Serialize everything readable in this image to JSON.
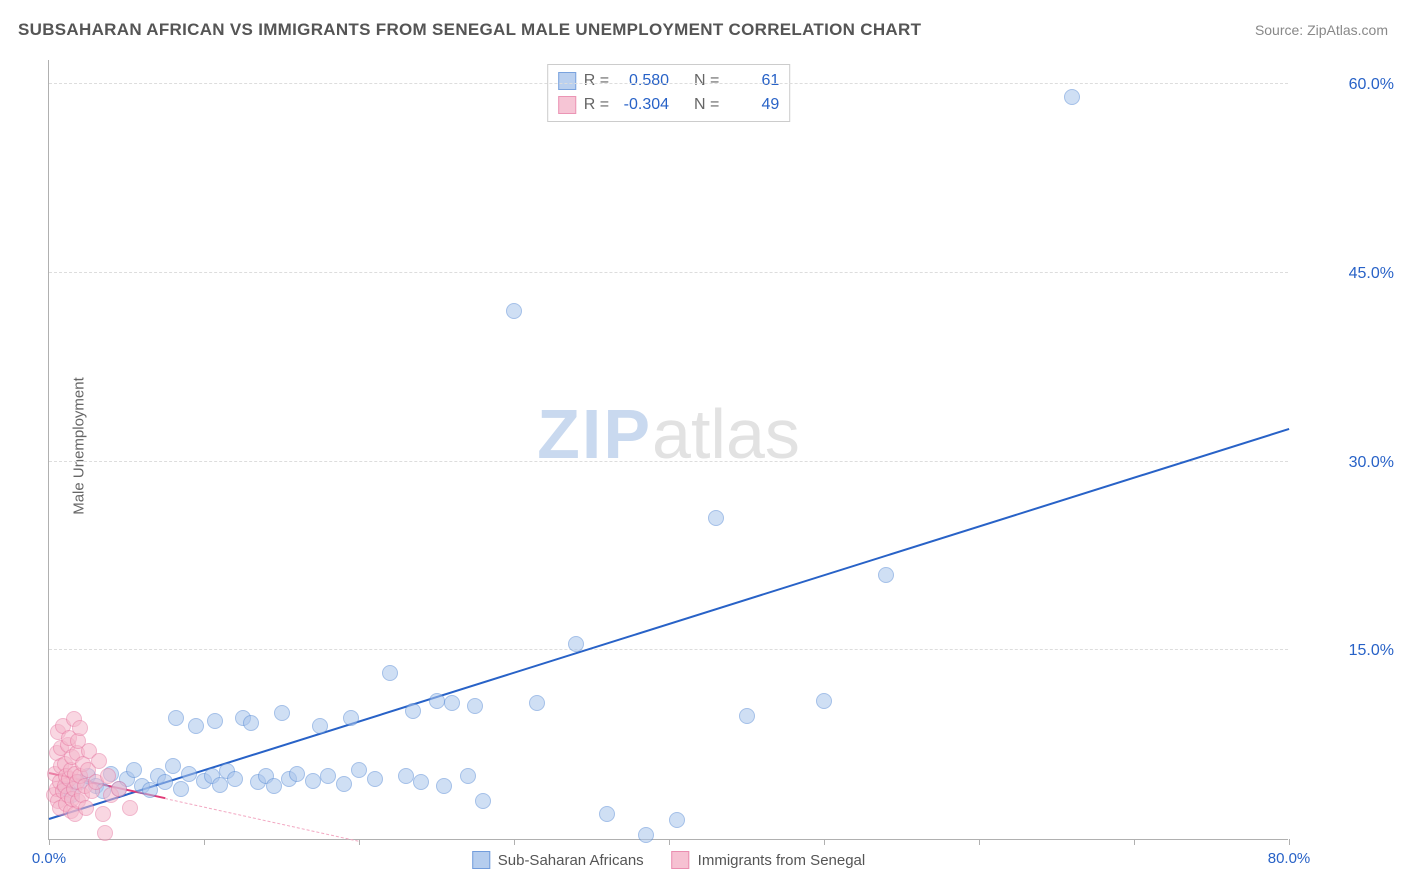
{
  "title": "SUBSAHARAN AFRICAN VS IMMIGRANTS FROM SENEGAL MALE UNEMPLOYMENT CORRELATION CHART",
  "source": "Source: ZipAtlas.com",
  "ylabel": "Male Unemployment",
  "watermark": {
    "part1": "ZIP",
    "part2": "atlas"
  },
  "chart": {
    "type": "scatter",
    "background_color": "#ffffff",
    "grid_color": "#dddddd",
    "axis_color": "#b0b0b0",
    "tick_label_color": "#2862c7",
    "tick_fontsize": 16,
    "xlim": [
      0,
      80
    ],
    "ylim": [
      0,
      62
    ],
    "x_ticks": [
      0,
      10,
      20,
      30,
      40,
      50,
      60,
      70,
      80
    ],
    "x_tick_labels": {
      "0": "0.0%",
      "80": "80.0%"
    },
    "y_ticks": [
      15,
      30,
      45,
      60
    ],
    "y_tick_labels": {
      "15": "15.0%",
      "30": "30.0%",
      "45": "45.0%",
      "60": "60.0%"
    },
    "point_radius": 8,
    "series": [
      {
        "name": "Sub-Saharan Africans",
        "fill": "#a9c5ec",
        "stroke": "#5a8dd6",
        "fill_opacity": 0.55,
        "r_value": "0.580",
        "n_value": "61",
        "trend": {
          "x1": 0,
          "y1": 1.5,
          "x2": 80,
          "y2": 32.5,
          "color": "#2862c7",
          "width": 2.2,
          "dash": false
        },
        "points": [
          [
            1,
            4.0
          ],
          [
            1.5,
            3.5
          ],
          [
            2,
            4.5
          ],
          [
            2.5,
            5.0
          ],
          [
            3,
            4.2
          ],
          [
            3.5,
            3.8
          ],
          [
            4,
            5.2
          ],
          [
            4.5,
            4.0
          ],
          [
            5,
            4.8
          ],
          [
            5.5,
            5.5
          ],
          [
            6,
            4.2
          ],
          [
            6.5,
            3.9
          ],
          [
            7,
            5.0
          ],
          [
            7.5,
            4.5
          ],
          [
            8,
            5.8
          ],
          [
            8.2,
            9.6
          ],
          [
            8.5,
            4.0
          ],
          [
            9,
            5.2
          ],
          [
            9.5,
            9.0
          ],
          [
            10,
            4.6
          ],
          [
            10.5,
            5.0
          ],
          [
            10.7,
            9.4
          ],
          [
            11,
            4.3
          ],
          [
            11.5,
            5.4
          ],
          [
            12,
            4.8
          ],
          [
            12.5,
            9.6
          ],
          [
            13,
            9.2
          ],
          [
            13.5,
            4.5
          ],
          [
            14,
            5.0
          ],
          [
            14.5,
            4.2
          ],
          [
            15,
            10.0
          ],
          [
            15.5,
            4.8
          ],
          [
            16,
            5.2
          ],
          [
            17,
            4.6
          ],
          [
            17.5,
            9.0
          ],
          [
            18,
            5.0
          ],
          [
            19,
            4.4
          ],
          [
            19.5,
            9.6
          ],
          [
            20,
            5.5
          ],
          [
            21,
            4.8
          ],
          [
            22,
            13.2
          ],
          [
            23,
            5.0
          ],
          [
            23.5,
            10.2
          ],
          [
            24,
            4.5
          ],
          [
            25,
            11.0
          ],
          [
            25.5,
            4.2
          ],
          [
            26,
            10.8
          ],
          [
            27,
            5.0
          ],
          [
            27.5,
            10.6
          ],
          [
            28,
            3.0
          ],
          [
            30,
            42.0
          ],
          [
            31.5,
            10.8
          ],
          [
            34,
            15.5
          ],
          [
            36,
            2.0
          ],
          [
            38.5,
            0.3
          ],
          [
            40.5,
            1.5
          ],
          [
            43,
            25.5
          ],
          [
            45,
            9.8
          ],
          [
            50,
            11.0
          ],
          [
            54,
            21.0
          ],
          [
            66,
            59.0
          ]
        ]
      },
      {
        "name": "Immigrants from Senegal",
        "fill": "#f5b7cb",
        "stroke": "#e77ba3",
        "fill_opacity": 0.55,
        "r_value": "-0.304",
        "n_value": "49",
        "trend": {
          "x1": 0,
          "y1": 5.2,
          "x2": 7.5,
          "y2": 3.2,
          "color": "#e03b78",
          "width": 2.0,
          "dash": false
        },
        "trend_ext": {
          "x1": 7.5,
          "y1": 3.2,
          "x2": 20,
          "y2": -0.2,
          "color": "#f2a8c2",
          "width": 1.4,
          "dash": true
        },
        "points": [
          [
            0.3,
            3.5
          ],
          [
            0.4,
            5.2
          ],
          [
            0.5,
            4.0
          ],
          [
            0.5,
            6.8
          ],
          [
            0.6,
            3.0
          ],
          [
            0.6,
            8.5
          ],
          [
            0.7,
            4.5
          ],
          [
            0.7,
            2.5
          ],
          [
            0.8,
            5.8
          ],
          [
            0.8,
            7.2
          ],
          [
            0.9,
            3.8
          ],
          [
            0.9,
            9.0
          ],
          [
            1.0,
            4.2
          ],
          [
            1.0,
            6.0
          ],
          [
            1.1,
            2.8
          ],
          [
            1.1,
            5.0
          ],
          [
            1.2,
            7.5
          ],
          [
            1.2,
            3.5
          ],
          [
            1.3,
            4.8
          ],
          [
            1.3,
            8.0
          ],
          [
            1.4,
            2.2
          ],
          [
            1.4,
            5.5
          ],
          [
            1.5,
            6.5
          ],
          [
            1.5,
            3.2
          ],
          [
            1.6,
            4.0
          ],
          [
            1.6,
            9.5
          ],
          [
            1.7,
            5.2
          ],
          [
            1.7,
            2.0
          ],
          [
            1.8,
            6.8
          ],
          [
            1.8,
            4.5
          ],
          [
            1.9,
            3.0
          ],
          [
            1.9,
            7.8
          ],
          [
            2.0,
            5.0
          ],
          [
            2.0,
            8.8
          ],
          [
            2.1,
            3.5
          ],
          [
            2.2,
            6.0
          ],
          [
            2.3,
            4.2
          ],
          [
            2.4,
            2.5
          ],
          [
            2.5,
            5.5
          ],
          [
            2.6,
            7.0
          ],
          [
            2.8,
            3.8
          ],
          [
            3.0,
            4.5
          ],
          [
            3.2,
            6.2
          ],
          [
            3.5,
            2.0
          ],
          [
            3.6,
            0.5
          ],
          [
            3.8,
            5.0
          ],
          [
            4.0,
            3.5
          ],
          [
            4.5,
            4.0
          ],
          [
            5.2,
            2.5
          ]
        ]
      }
    ]
  },
  "stats_labels": {
    "r": "R =",
    "n": "N ="
  },
  "legend": {
    "items": [
      "Sub-Saharan Africans",
      "Immigrants from Senegal"
    ]
  }
}
